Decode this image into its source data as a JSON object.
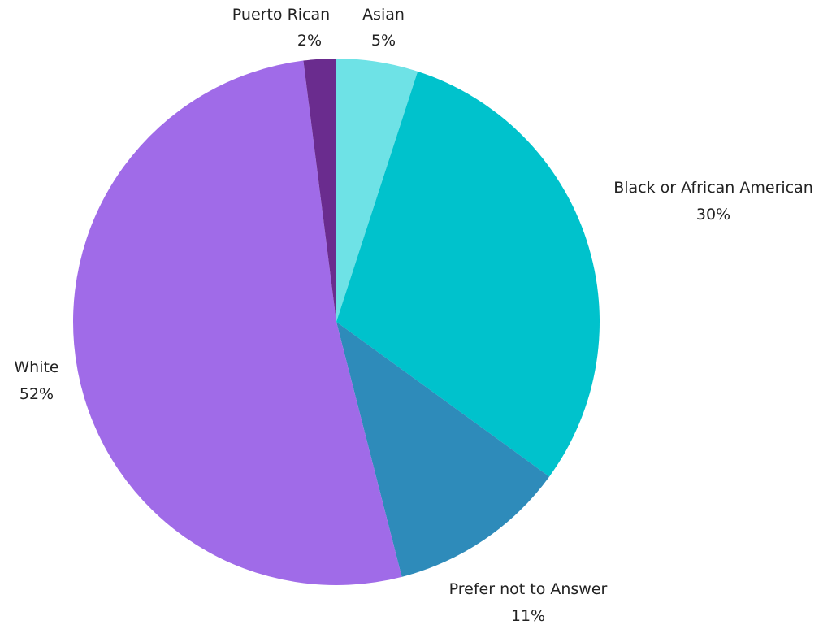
{
  "chart_data": {
    "type": "pie",
    "title": "",
    "slices": [
      {
        "label": "Asian",
        "value": 5,
        "display": "5%",
        "color": "#6EE2E6"
      },
      {
        "label": "Black or African American",
        "value": 30,
        "display": "30%",
        "color": "#00C2CC"
      },
      {
        "label": "Prefer not to Answer",
        "value": 11,
        "display": "11%",
        "color": "#2E8BBA"
      },
      {
        "label": "White",
        "value": 52,
        "display": "52%",
        "color": "#A06BE8"
      },
      {
        "label": "Puerto Rican",
        "value": 2,
        "display": "2%",
        "color": "#6A2C8E"
      }
    ]
  }
}
